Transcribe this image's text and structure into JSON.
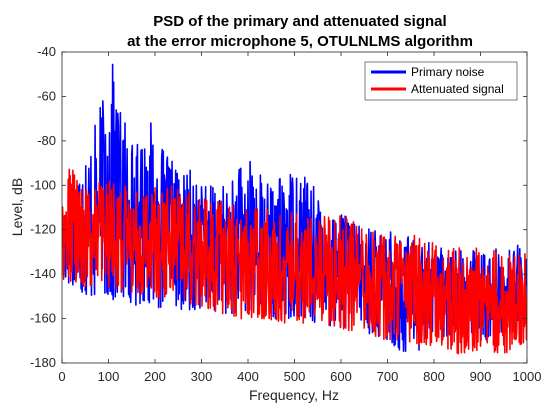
{
  "chart_data": {
    "type": "line",
    "title": [
      "PSD of the primary and attenuated signal",
      "at the error microphone 5, OTULNLMS algorithm"
    ],
    "xlabel": "Frequency, Hz",
    "ylabel": "Level, dB",
    "xlim": [
      0,
      1000
    ],
    "ylim": [
      -180,
      -40
    ],
    "xticks": [
      0,
      100,
      200,
      300,
      400,
      500,
      600,
      700,
      800,
      900,
      1000
    ],
    "yticks": [
      -180,
      -160,
      -140,
      -120,
      -100,
      -80,
      -60,
      -40
    ],
    "xtick_labels": [
      "0",
      "100",
      "200",
      "300",
      "400",
      "500",
      "600",
      "700",
      "800",
      "900",
      "1000"
    ],
    "ytick_labels": [
      "-180",
      "-160",
      "-140",
      "-120",
      "-100",
      "-80",
      "-60",
      "-40"
    ],
    "grid": false,
    "legend_position": "top-right",
    "series": [
      {
        "name": "Primary noise",
        "color": "#0000ff",
        "envelope": {
          "x": [
            0,
            20,
            40,
            60,
            80,
            100,
            110,
            120,
            140,
            160,
            180,
            200,
            220,
            240,
            260,
            280,
            300,
            320,
            340,
            360,
            380,
            400,
            420,
            440,
            460,
            480,
            500,
            520,
            540,
            560,
            580,
            600,
            650,
            700,
            750,
            800,
            850,
            900,
            950,
            1000
          ],
          "upper": [
            -112,
            -100,
            -90,
            -82,
            -65,
            -55,
            -44,
            -58,
            -72,
            -82,
            -70,
            -73,
            -86,
            -88,
            -95,
            -92,
            -98,
            -100,
            -100,
            -98,
            -92,
            -88,
            -90,
            -98,
            -100,
            -92,
            -90,
            -92,
            -100,
            -104,
            -110,
            -112,
            -118,
            -120,
            -122,
            -126,
            -128,
            -130,
            -128,
            -126
          ],
          "lower": [
            -142,
            -145,
            -148,
            -150,
            -150,
            -150,
            -152,
            -150,
            -152,
            -154,
            -152,
            -155,
            -155,
            -156,
            -156,
            -156,
            -156,
            -156,
            -157,
            -158,
            -158,
            -158,
            -158,
            -158,
            -160,
            -160,
            -160,
            -160,
            -162,
            -162,
            -164,
            -164,
            -166,
            -170,
            -178,
            -168,
            -168,
            -170,
            -168,
            -165
          ]
        }
      },
      {
        "name": "Attenuated signal",
        "color": "#ff0000",
        "envelope": {
          "x": [
            0,
            20,
            40,
            60,
            80,
            100,
            120,
            140,
            160,
            180,
            200,
            220,
            240,
            260,
            280,
            300,
            320,
            340,
            360,
            380,
            400,
            420,
            440,
            460,
            480,
            500,
            520,
            540,
            560,
            580,
            600,
            650,
            700,
            750,
            800,
            850,
            900,
            950,
            1000
          ],
          "upper": [
            -110,
            -86,
            -102,
            -100,
            -96,
            -98,
            -96,
            -100,
            -102,
            -100,
            -96,
            -98,
            -100,
            -102,
            -104,
            -106,
            -106,
            -106,
            -108,
            -110,
            -110,
            -108,
            -110,
            -110,
            -110,
            -112,
            -112,
            -112,
            -112,
            -114,
            -112,
            -118,
            -120,
            -122,
            -124,
            -128,
            -128,
            -130,
            -130
          ],
          "lower": [
            -142,
            -144,
            -145,
            -146,
            -145,
            -146,
            -147,
            -148,
            -148,
            -150,
            -150,
            -152,
            -152,
            -154,
            -154,
            -156,
            -156,
            -158,
            -158,
            -160,
            -160,
            -160,
            -160,
            -161,
            -162,
            -162,
            -162,
            -164,
            -164,
            -164,
            -165,
            -166,
            -170,
            -172,
            -172,
            -176,
            -174,
            -176,
            -170
          ]
        }
      }
    ]
  }
}
